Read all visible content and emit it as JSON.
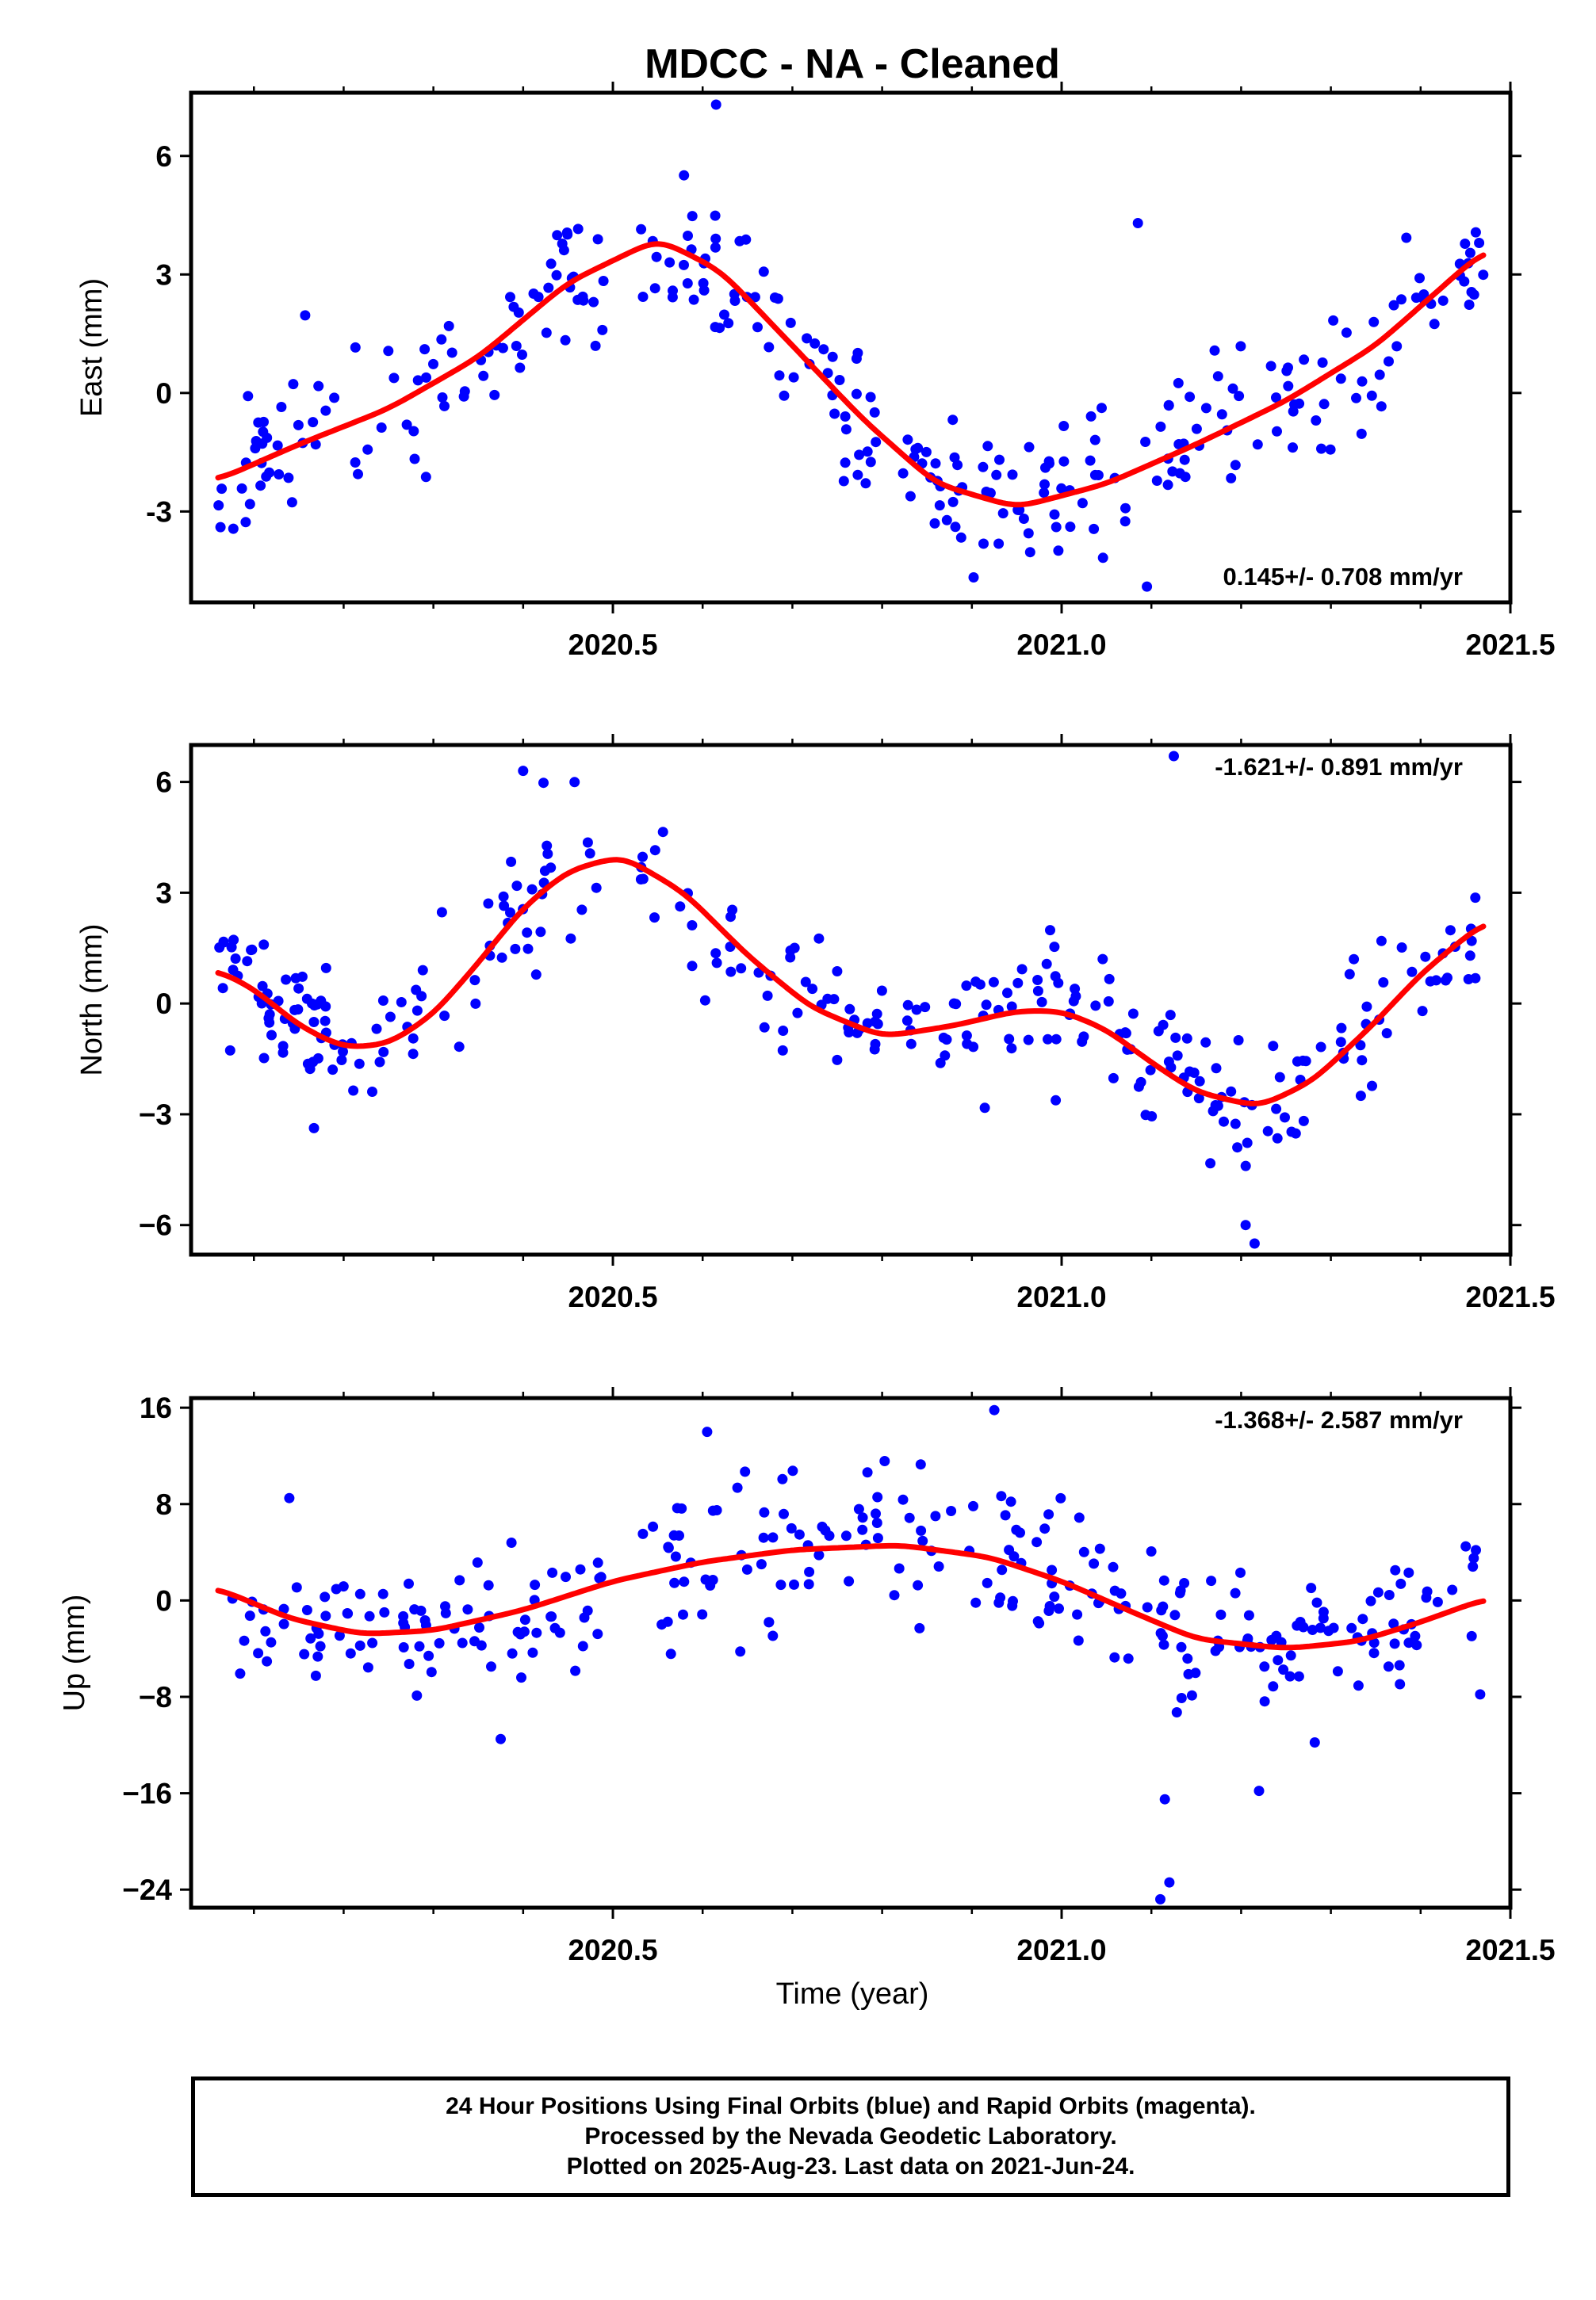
{
  "figure": {
    "title": "MDCC  - NA - Cleaned",
    "xlabel": "Time (year)",
    "caption": [
      "24 Hour Positions Using Final Orbits (blue) and Rapid Orbits (magenta).",
      "Processed by the Nevada Geodetic Laboratory.",
      "Plotted on 2025-Aug-23. Last data on 2021-Jun-24."
    ],
    "colors": {
      "points": "#0000ff",
      "fit": "#ff0000",
      "axes": "#000000"
    }
  },
  "chart_data": [
    {
      "type": "scatter",
      "name": "east",
      "ylabel": "East (mm)",
      "rate_label": "0.145+/- 0.708 mm/yr",
      "rate_position": "bottom-right",
      "xlim": [
        2020.03,
        2021.5
      ],
      "ylim": [
        -5.3,
        7.6
      ],
      "xticks": [
        2020.5,
        2021.0,
        2021.5
      ],
      "xticklabels": [
        "2020.5",
        "2021.0",
        "2021.5"
      ],
      "xminor": [
        2020.1,
        2020.2,
        2020.3,
        2020.4,
        2020.6,
        2020.7,
        2020.8,
        2020.9,
        2021.1,
        2021.2,
        2021.3,
        2021.4
      ],
      "yticks": [
        -3,
        0,
        3,
        6
      ],
      "yticklabels": [
        "-3",
        "0",
        "3",
        "6"
      ],
      "fit": {
        "x": [
          2020.06,
          2020.15,
          2020.25,
          2020.35,
          2020.45,
          2020.55,
          2020.62,
          2020.7,
          2020.78,
          2020.86,
          2020.95,
          2021.05,
          2021.15,
          2021.25,
          2021.35,
          2021.47
        ],
        "y": [
          -2.2,
          -1.3,
          -0.4,
          0.9,
          2.8,
          3.9,
          3.1,
          1.2,
          -0.7,
          -2.3,
          -2.9,
          -2.3,
          -1.3,
          -0.2,
          1.2,
          3.6
        ]
      },
      "scatter": {
        "n": 300,
        "gaps": [
          [
            2020.49,
            2020.53
          ],
          [
            2021.43,
            2021.44
          ]
        ],
        "noise": 0.9,
        "seed": 11,
        "outliers": [
          [
            2020.615,
            7.3
          ],
          [
            2021.085,
            4.3
          ],
          [
            2021.095,
            -4.9
          ]
        ]
      }
    },
    {
      "type": "scatter",
      "name": "north",
      "ylabel": "North (mm)",
      "rate_label": "-1.621+/- 0.891 mm/yr",
      "rate_position": "top-right",
      "xlim": [
        2020.03,
        2021.5
      ],
      "ylim": [
        -6.8,
        7.0
      ],
      "xticks": [
        2020.5,
        2021.0,
        2021.5
      ],
      "xticklabels": [
        "2020.5",
        "2021.0",
        "2021.5"
      ],
      "xminor": [
        2020.1,
        2020.2,
        2020.3,
        2020.4,
        2020.6,
        2020.7,
        2020.8,
        2020.9,
        2021.1,
        2021.2,
        2021.3,
        2021.4
      ],
      "yticks": [
        -6,
        -3,
        0,
        3,
        6
      ],
      "yticklabels": [
        "−6",
        "−3",
        "0",
        "3",
        "6"
      ],
      "fit": {
        "x": [
          2020.06,
          2020.1,
          2020.15,
          2020.2,
          2020.25,
          2020.3,
          2020.35,
          2020.4,
          2020.45,
          2020.51,
          2020.58,
          2020.65,
          2020.72,
          2020.8,
          2020.88,
          2020.95,
          2021.0,
          2021.05,
          2021.1,
          2021.15,
          2021.22,
          2021.28,
          2021.35,
          2021.4,
          2021.47
        ],
        "y": [
          0.9,
          0.4,
          -0.6,
          -1.2,
          -1.1,
          -0.3,
          1.1,
          2.6,
          3.6,
          4.0,
          3.0,
          1.3,
          -0.1,
          -0.9,
          -0.6,
          -0.2,
          -0.2,
          -0.7,
          -1.6,
          -2.4,
          -2.8,
          -2.1,
          -0.5,
          0.8,
          2.2
        ]
      },
      "scatter": {
        "n": 300,
        "gaps": [
          [
            2020.49,
            2020.53
          ],
          [
            2021.44,
            2021.45
          ]
        ],
        "noise": 0.95,
        "seed": 23,
        "outliers": [
          [
            2020.4,
            6.3
          ],
          [
            2021.125,
            6.7
          ],
          [
            2021.215,
            -6.5
          ],
          [
            2021.205,
            -6.0
          ]
        ]
      }
    },
    {
      "type": "scatter",
      "name": "up",
      "ylabel": "Up (mm)",
      "rate_label": "-1.368+/- 2.587 mm/yr",
      "rate_position": "top-right",
      "xlim": [
        2020.03,
        2021.5
      ],
      "ylim": [
        -25.5,
        16.8
      ],
      "xticks": [
        2020.5,
        2021.0,
        2021.5
      ],
      "xticklabels": [
        "2020.5",
        "2021.0",
        "2021.5"
      ],
      "xminor": [
        2020.1,
        2020.2,
        2020.3,
        2020.4,
        2020.6,
        2020.7,
        2020.8,
        2020.9,
        2021.1,
        2021.2,
        2021.3,
        2021.4
      ],
      "yticks": [
        -24,
        -16,
        -8,
        0,
        8,
        16
      ],
      "yticklabels": [
        "−24",
        "−16",
        "−8",
        "0",
        "8",
        "16"
      ],
      "fit": {
        "x": [
          2020.06,
          2020.14,
          2020.22,
          2020.3,
          2020.4,
          2020.5,
          2020.6,
          2020.7,
          2020.82,
          2020.92,
          2021.0,
          2021.08,
          2021.15,
          2021.25,
          2021.33,
          2021.4,
          2021.47
        ],
        "y": [
          1.0,
          -1.5,
          -2.8,
          -2.5,
          -0.8,
          1.6,
          3.2,
          4.2,
          4.6,
          3.6,
          1.6,
          -1.0,
          -3.2,
          -4.0,
          -3.4,
          -1.8,
          0.1
        ]
      },
      "scatter": {
        "n": 300,
        "gaps": [
          [
            2020.49,
            2020.53
          ],
          [
            2021.44,
            2021.45
          ]
        ],
        "noise": 3.3,
        "seed": 37,
        "outliers": [
          [
            2020.605,
            14.0
          ],
          [
            2020.925,
            15.8
          ],
          [
            2021.115,
            -16.5
          ],
          [
            2021.12,
            -23.4
          ],
          [
            2021.11,
            -24.8
          ],
          [
            2021.22,
            -15.8
          ],
          [
            2020.375,
            -11.5
          ]
        ]
      }
    }
  ]
}
